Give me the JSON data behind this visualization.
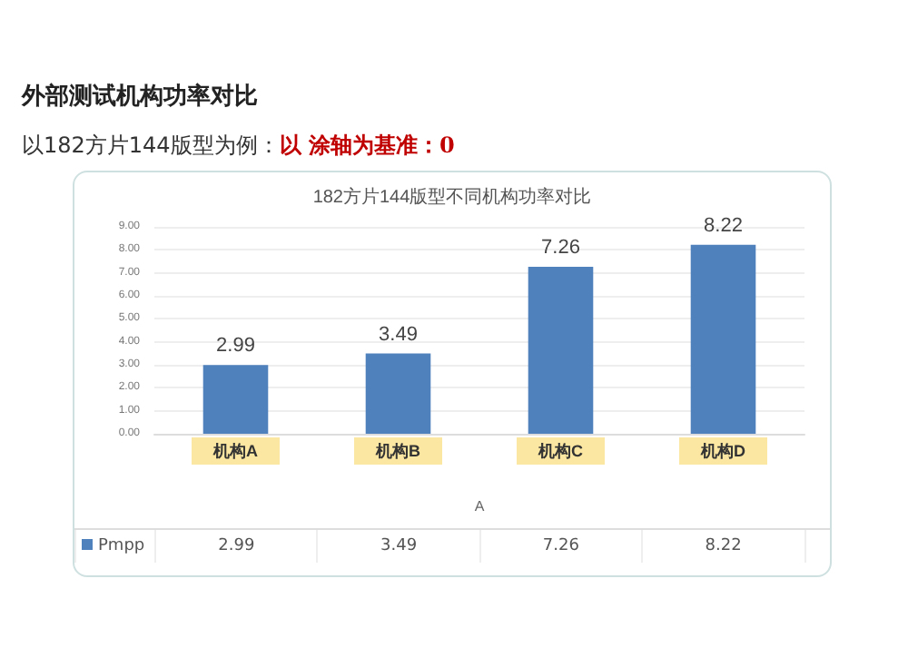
{
  "chart_data": {
    "type": "bar",
    "title": "外部测试机构功率对比",
    "subtitle": "以182方片144版型为例：",
    "annotations": [
      "以 涂轴为基准：0",
      "182方片144版型不同机构功率对比",
      "2.99",
      "3.49",
      "7.26",
      "8.22"
    ],
    "categories": [
      "机构A",
      "机构B",
      "机构C",
      "机构D"
    ],
    "series": [
      {
        "name": "Pmpp",
        "color": "#4f81bd",
        "values": [
          2.99,
          3.49,
          7.26,
          8.22
        ],
        "value_labels": [
          "2.99",
          "3.49",
          "7.26",
          "8.22"
        ]
      }
    ],
    "xlabel": "A",
    "ylim": [
      0,
      9
    ],
    "yticks": [
      {
        "value": 0,
        "label": "0.00"
      },
      {
        "value": 1,
        "label": "1.00"
      },
      {
        "value": 2,
        "label": "2.00"
      },
      {
        "value": 3,
        "label": "3.00"
      },
      {
        "value": 4,
        "label": "4.00"
      },
      {
        "value": 5,
        "label": "5.00"
      },
      {
        "value": 6,
        "label": "6.00"
      },
      {
        "value": 7,
        "label": "7.00"
      },
      {
        "value": 8,
        "label": "8.00"
      },
      {
        "value": 9,
        "label": "9.00"
      }
    ],
    "grid": "y",
    "legend": "bottom left"
  }
}
